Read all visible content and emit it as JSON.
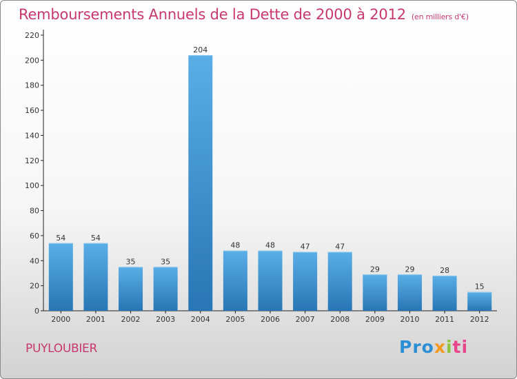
{
  "chart_data": {
    "type": "bar",
    "title": "Remboursements Annuels de la Dette de 2000 à 2012",
    "subtitle": "(en milliers d'€)",
    "categories": [
      "2000",
      "2001",
      "2002",
      "2003",
      "2004",
      "2005",
      "2006",
      "2007",
      "2008",
      "2009",
      "2010",
      "2011",
      "2012"
    ],
    "values": [
      54,
      54,
      35,
      35,
      204,
      48,
      48,
      47,
      47,
      29,
      29,
      28,
      15
    ],
    "data_labels": [
      "54",
      "54",
      "35",
      "35",
      "204",
      "48",
      "48",
      "47",
      "47",
      "29",
      "29",
      "28",
      "15"
    ],
    "yticks": [
      0,
      20,
      40,
      60,
      80,
      100,
      120,
      140,
      160,
      180,
      200,
      220
    ],
    "ylim": [
      0,
      220
    ],
    "xlabel": "",
    "ylabel": "",
    "grid": false,
    "legend": "none",
    "bar_color": "#3a95d8"
  },
  "footer": {
    "commune": "PUYLOUBIER",
    "logo_parts": [
      "Pro",
      "x",
      "i",
      "ti"
    ]
  },
  "colors": {
    "title": "#c8386e",
    "bar_top": "#5aaee6",
    "bar_bottom": "#2876b5",
    "axis": "#222222"
  }
}
